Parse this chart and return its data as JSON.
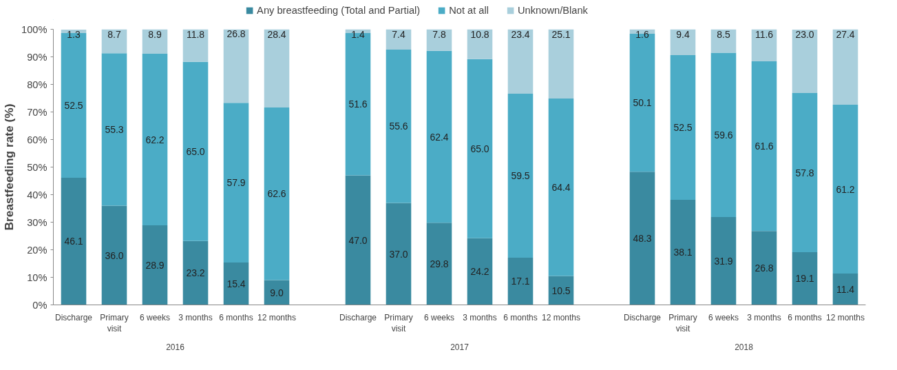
{
  "chart_data": {
    "type": "bar",
    "stacked": true,
    "ylabel": "Breastfeeding rate (%)",
    "categories": [
      "Discharge",
      "Primary\nvisit",
      "6 weeks",
      "3 months",
      "6 months",
      "12 months",
      null,
      "Discharge",
      "Primary\nvisit",
      "6 weeks",
      "3 months",
      "6 months",
      "12 months",
      null,
      "Discharge",
      "Primary\nvisit",
      "6 weeks",
      "3 months",
      "6 months",
      "12 months"
    ],
    "series": [
      {
        "name": "Any breastfeeding (Total and Partial)",
        "color": "#3a8aa0",
        "values": [
          46.1,
          36.0,
          28.9,
          23.2,
          15.4,
          9.0,
          null,
          47.0,
          37.0,
          29.8,
          24.2,
          17.1,
          10.5,
          null,
          48.3,
          38.1,
          31.9,
          26.8,
          19.1,
          11.4
        ],
        "value_labels": [
          "46.1",
          "36.0",
          "28.9",
          "23.2",
          "15.4",
          "9.0",
          null,
          "47.0",
          "37.0",
          "29.8",
          "24.2",
          "17.1",
          "10.5",
          null,
          "48.3",
          "38.1",
          "31.9",
          "26.8",
          "19.1",
          "11.4"
        ]
      },
      {
        "name": "Not at all",
        "color": "#4bacc6",
        "values": [
          52.5,
          55.3,
          62.2,
          65.0,
          57.9,
          62.6,
          null,
          51.6,
          55.6,
          62.4,
          65.0,
          59.5,
          64.4,
          null,
          50.1,
          52.5,
          59.6,
          61.6,
          57.8,
          61.2
        ],
        "value_labels": [
          "52.5",
          "55.3",
          "62.2",
          "65.0",
          "57.9",
          "62.6",
          null,
          "51.6",
          "55.6",
          "62.4",
          "65.0",
          "59.5",
          "64.4",
          null,
          "50.1",
          "52.5",
          "59.6",
          "61.6",
          "57.8",
          "61.2"
        ]
      },
      {
        "name": "Unknown/Blank",
        "color": "#a9cfdc",
        "values": [
          1.3,
          8.7,
          8.9,
          11.8,
          26.8,
          28.4,
          null,
          1.4,
          7.4,
          7.8,
          10.8,
          23.4,
          25.1,
          null,
          1.6,
          9.4,
          8.5,
          11.6,
          23.0,
          27.4
        ],
        "value_labels": [
          "1.3",
          "8.7",
          "8.9",
          "11.8",
          "26.8",
          "28.4",
          null,
          "1.4",
          "7.4",
          "7.8",
          "10.8",
          "23.4",
          "25.1",
          null,
          "1.6",
          "9.4",
          "8.5",
          "11.6",
          "23.0",
          "27.4"
        ]
      }
    ],
    "ylim": [
      0,
      100
    ],
    "yticks": [
      {
        "value": 0,
        "label": "0%"
      },
      {
        "value": 10,
        "label": "10%"
      },
      {
        "value": 20,
        "label": "20%"
      },
      {
        "value": 30,
        "label": "30%"
      },
      {
        "value": 40,
        "label": "40%"
      },
      {
        "value": 50,
        "label": "50%"
      },
      {
        "value": 60,
        "label": "60%"
      },
      {
        "value": 70,
        "label": "70%"
      },
      {
        "value": 80,
        "label": "80%"
      },
      {
        "value": 90,
        "label": "90%"
      },
      {
        "value": 100,
        "label": "100%"
      }
    ],
    "annotations": [
      "2016",
      "2017",
      "2018"
    ],
    "legend": "top",
    "data_labels": true,
    "grid": false
  }
}
